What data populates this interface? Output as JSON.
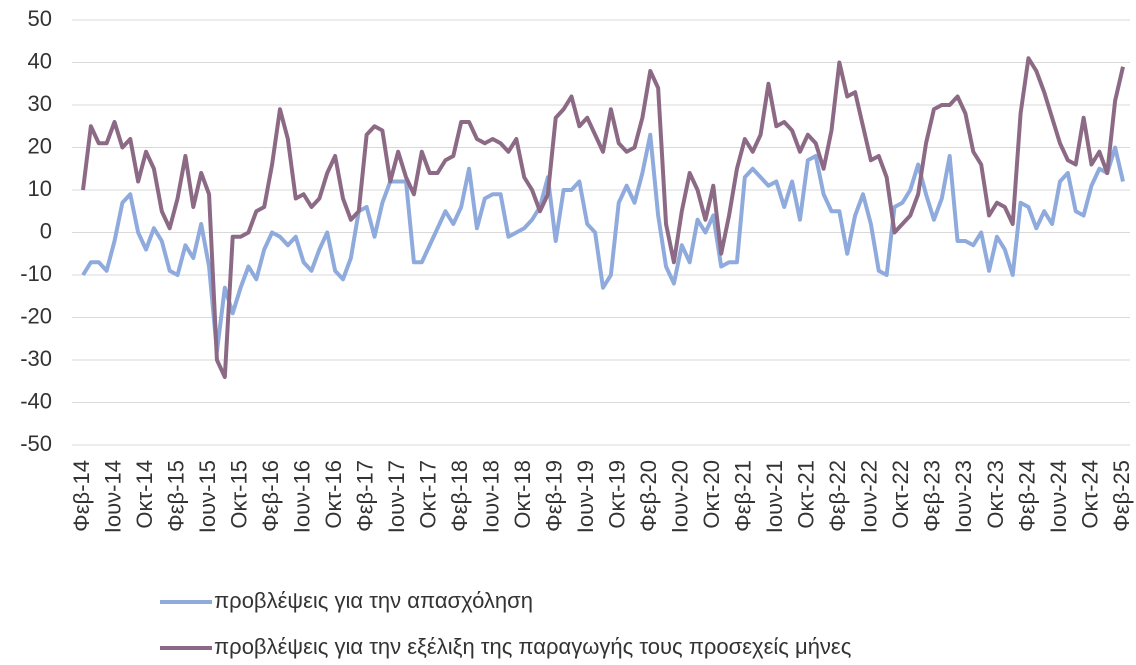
{
  "chart_data": {
    "type": "line",
    "categories": [
      "Φεβ-14",
      null,
      null,
      null,
      "Ιουν-14",
      null,
      null,
      null,
      "Οκτ-14",
      null,
      null,
      null,
      "Φεβ-15",
      null,
      null,
      null,
      "Ιουν-15",
      null,
      null,
      null,
      "Οκτ-15",
      null,
      null,
      null,
      "Φεβ-16",
      null,
      null,
      null,
      "Ιουν-16",
      null,
      null,
      null,
      "Οκτ-16",
      null,
      null,
      null,
      "Φεβ-17",
      null,
      null,
      null,
      "Ιουν-17",
      null,
      null,
      null,
      "Οκτ-17",
      null,
      null,
      null,
      "Φεβ-18",
      null,
      null,
      null,
      "Ιουν-18",
      null,
      null,
      null,
      "Οκτ-18",
      null,
      null,
      null,
      "Φεβ-19",
      null,
      null,
      null,
      "Ιουν-19",
      null,
      null,
      null,
      "Οκτ-19",
      null,
      null,
      null,
      "Φεβ-20",
      null,
      null,
      null,
      "Ιουν-20",
      null,
      null,
      null,
      "Οκτ-20",
      null,
      null,
      null,
      "Φεβ-21",
      null,
      null,
      null,
      "Ιουν-21",
      null,
      null,
      null,
      "Οκτ-21",
      null,
      null,
      null,
      "Φεβ-22",
      null,
      null,
      null,
      "Ιουν-22",
      null,
      null,
      null,
      "Οκτ-22",
      null,
      null,
      null,
      "Φεβ-23",
      null,
      null,
      null,
      "Ιουν-23",
      null,
      null,
      null,
      "Οκτ-23",
      null,
      null,
      null,
      "Φεβ-24",
      null,
      null,
      null,
      "Ιουν-24",
      null,
      null,
      null,
      "Οκτ-24",
      null,
      null,
      null,
      "Φεβ-25"
    ],
    "series": [
      {
        "name": "προβλέψεις για την απασχόληση",
        "color": "#8faadc",
        "values": [
          -10,
          -7,
          -7,
          -9,
          -2,
          7,
          9,
          0,
          -4,
          1,
          -2,
          -9,
          -10,
          -3,
          -6,
          2,
          -8,
          -28,
          -13,
          -19,
          -13,
          -8,
          -11,
          -4,
          0,
          -1,
          -3,
          -1,
          -7,
          -9,
          -4,
          0,
          -9,
          -11,
          -6,
          5,
          6,
          -1,
          7,
          12,
          12,
          12,
          -7,
          -7,
          -3,
          1,
          5,
          2,
          6,
          15,
          1,
          8,
          9,
          9,
          -1,
          0,
          1,
          3,
          6,
          13,
          -2,
          10,
          10,
          12,
          2,
          0,
          -13,
          -10,
          7,
          11,
          7,
          14,
          23,
          4,
          -8,
          -12,
          -3,
          -7,
          3,
          0,
          4,
          -8,
          -7,
          -7,
          13,
          15,
          13,
          11,
          12,
          6,
          12,
          3,
          17,
          18,
          9,
          5,
          5,
          -5,
          4,
          9,
          2,
          -9,
          -10,
          6,
          7,
          10,
          16,
          9,
          3,
          8,
          18,
          -2,
          -2,
          -3,
          0,
          -9,
          -1,
          -4,
          -10,
          7,
          6,
          1,
          5,
          2,
          12,
          14,
          5,
          4,
          11,
          15,
          14,
          20,
          12
        ]
      },
      {
        "name": "προβλέψεις για την εξέλιξη της παραγωγής τους προσεχείς μήνες",
        "color": "#8c6a85",
        "values": [
          10,
          25,
          21,
          21,
          26,
          20,
          22,
          12,
          19,
          15,
          5,
          1,
          8,
          18,
          6,
          14,
          9,
          -30,
          -34,
          -1,
          -1,
          0,
          5,
          6,
          16,
          29,
          22,
          8,
          9,
          6,
          8,
          14,
          18,
          8,
          3,
          5,
          23,
          25,
          24,
          12,
          19,
          13,
          9,
          19,
          14,
          14,
          17,
          18,
          26,
          26,
          22,
          21,
          22,
          21,
          19,
          22,
          13,
          10,
          5,
          9,
          27,
          29,
          32,
          25,
          27,
          23,
          19,
          29,
          21,
          19,
          20,
          27,
          38,
          34,
          2,
          -7,
          5,
          14,
          10,
          3,
          11,
          -5,
          4,
          15,
          22,
          19,
          23,
          35,
          25,
          26,
          24,
          19,
          23,
          21,
          15,
          24,
          40,
          32,
          33,
          25,
          17,
          18,
          13,
          0,
          2,
          4,
          9,
          21,
          29,
          30,
          30,
          32,
          28,
          19,
          16,
          4,
          7,
          6,
          2,
          28,
          41,
          38,
          33,
          27,
          21,
          17,
          16,
          27,
          16,
          19,
          14,
          31,
          39
        ]
      }
    ],
    "ylim": [
      -50,
      50
    ],
    "yticks": [
      50,
      40,
      30,
      20,
      10,
      0,
      -10,
      -20,
      -30,
      -40,
      -50
    ],
    "grid": true
  }
}
